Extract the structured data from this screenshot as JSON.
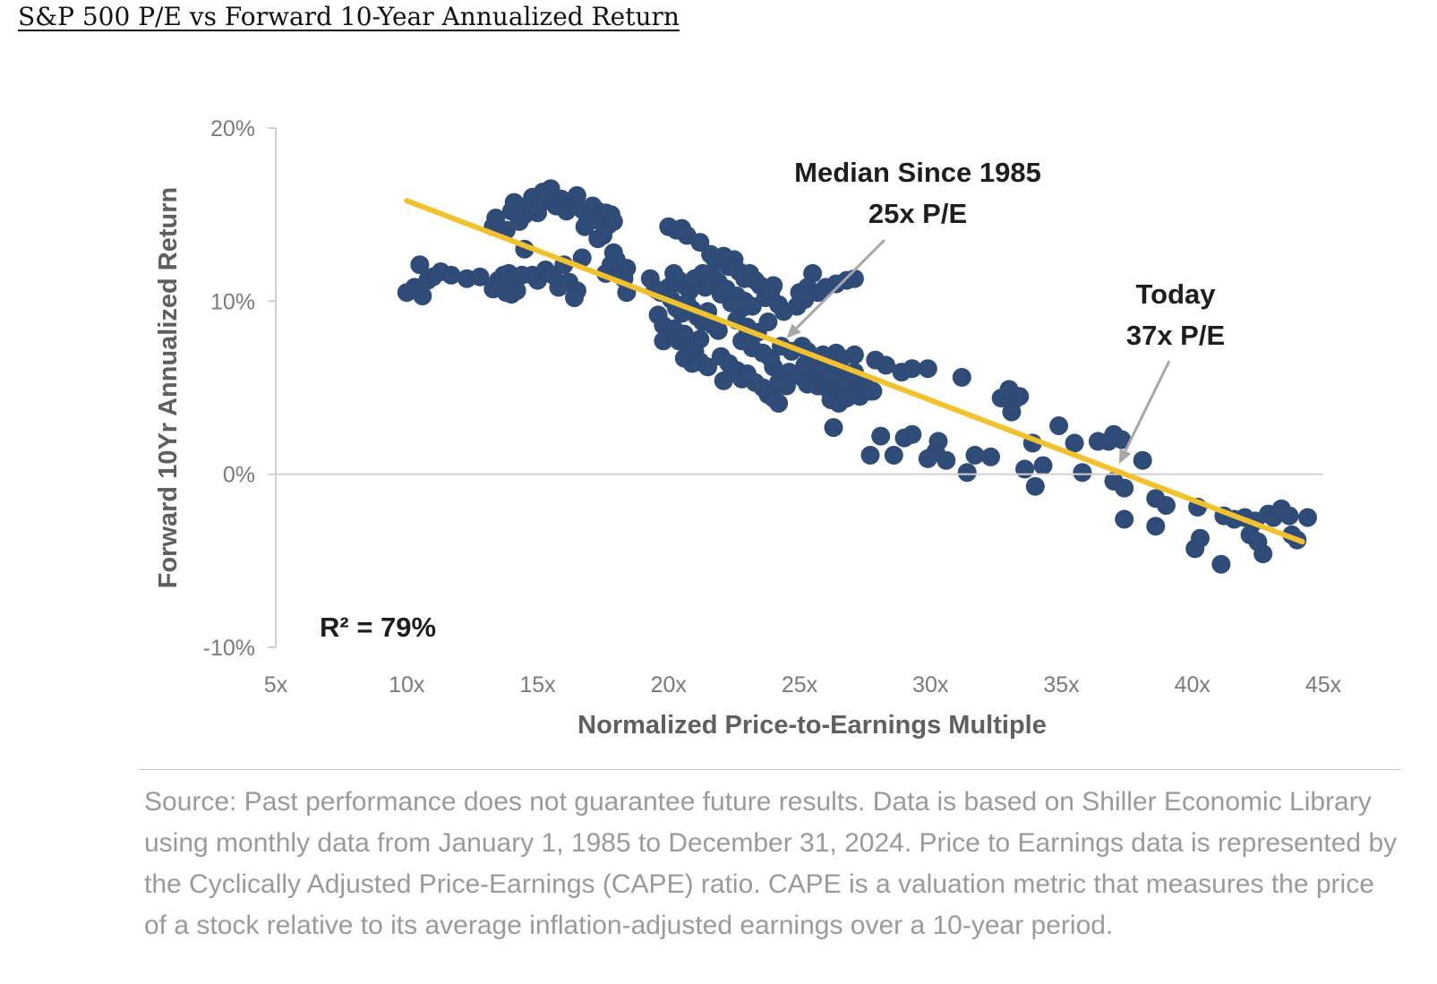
{
  "title": "S&P 500 P/E vs Forward 10-Year Annualized Return",
  "source_note": "Source: Past performance does not guarantee future results. Data is based on Shiller Economic Library using monthly data from January 1, 1985 to December 31, 2024. Price to Earnings data is represented by the Cyclically Adjusted Price-Earnings (CAPE) ratio. CAPE is a valuation metric that measures the price of a stock relative to its average inflation-adjusted earnings over a 10-year period.",
  "colors": {
    "points": "#2f4b78",
    "trendline": "#f2c12e",
    "arrows": "#a6a6a6",
    "axis": "#d0d0d0"
  },
  "chart_data": {
    "type": "scatter",
    "xlabel": "Normalized Price-to-Earnings Multiple",
    "ylabel": "Forward 10Yr Annualized Return",
    "xlim": [
      5,
      45
    ],
    "ylim": [
      -10,
      20
    ],
    "x_ticks": [
      5,
      10,
      15,
      20,
      25,
      30,
      35,
      40,
      45
    ],
    "x_tick_labels": [
      "5x",
      "10x",
      "15x",
      "20x",
      "25x",
      "30x",
      "35x",
      "40x",
      "45x"
    ],
    "y_ticks": [
      -10,
      0,
      10,
      20
    ],
    "y_tick_labels": [
      "-10%",
      "0%",
      "10%",
      "20%"
    ],
    "grid": false,
    "trendline": {
      "x": [
        10,
        44.2
      ],
      "y": [
        15.8,
        -3.9
      ]
    },
    "annotations": [
      {
        "lines": [
          "Median Since 1985",
          "25x P/E"
        ],
        "x": 25,
        "y": 7.7
      },
      {
        "lines": [
          "Today",
          "37x P/E"
        ],
        "x": 37,
        "y": 0.6
      },
      {
        "lines": [
          "R² = 79%"
        ],
        "x": 12.5,
        "y": -9
      }
    ],
    "points": [
      [
        10,
        10.5
      ],
      [
        10.3,
        10.8
      ],
      [
        10.5,
        12.1
      ],
      [
        10.6,
        10.3
      ],
      [
        10.8,
        11.2
      ],
      [
        11,
        11.4
      ],
      [
        11.3,
        11.7
      ],
      [
        11.7,
        11.5
      ],
      [
        12.3,
        11.3
      ],
      [
        12.8,
        11.4
      ],
      [
        13.3,
        10.7
      ],
      [
        13.5,
        11.2
      ],
      [
        13.7,
        11.5
      ],
      [
        13.9,
        11.6
      ],
      [
        13.6,
        10.9
      ],
      [
        13.8,
        10.5
      ],
      [
        14,
        10.4
      ],
      [
        14.2,
        10.6
      ],
      [
        14.4,
        11.5
      ],
      [
        13.8,
        11.2
      ],
      [
        13.3,
        14.3
      ],
      [
        13.4,
        14.8
      ],
      [
        13.8,
        14.1
      ],
      [
        14,
        15.2
      ],
      [
        14.1,
        15.7
      ],
      [
        14.3,
        14.6
      ],
      [
        14.5,
        15
      ],
      [
        14.6,
        15.5
      ],
      [
        14.8,
        16
      ],
      [
        15,
        15.1
      ],
      [
        15.2,
        16.3
      ],
      [
        15.3,
        15.8
      ],
      [
        15.5,
        16.5
      ],
      [
        15.7,
        15.5
      ],
      [
        15.9,
        15.9
      ],
      [
        16.1,
        15.2
      ],
      [
        16.3,
        15.6
      ],
      [
        16.5,
        16.1
      ],
      [
        16.7,
        15.3
      ],
      [
        16.9,
        14.9
      ],
      [
        17.1,
        15.5
      ],
      [
        17.3,
        15.2
      ],
      [
        17.5,
        14.8
      ],
      [
        17.7,
        14.4
      ],
      [
        17.8,
        15
      ],
      [
        17.9,
        14.6
      ],
      [
        17.6,
        15.1
      ],
      [
        17.2,
        14.7
      ],
      [
        16.8,
        14.3
      ],
      [
        17.5,
        13.8
      ],
      [
        17.3,
        13.6
      ],
      [
        17.9,
        12.8
      ],
      [
        18,
        12.4
      ],
      [
        18.2,
        11.8
      ],
      [
        18.3,
        11.3
      ],
      [
        18.4,
        11.9
      ],
      [
        17.8,
        12.1
      ],
      [
        17.6,
        11.6
      ],
      [
        16.7,
        12.5
      ],
      [
        16,
        12.1
      ],
      [
        15.3,
        11.8
      ],
      [
        15,
        11.2
      ],
      [
        14.8,
        11.5
      ],
      [
        15.6,
        11.5
      ],
      [
        16.2,
        11.1
      ],
      [
        16.5,
        10.6
      ],
      [
        16.4,
        10.2
      ],
      [
        15.8,
        10.8
      ],
      [
        14.5,
        13
      ],
      [
        18.4,
        10.5
      ],
      [
        20,
        14.3
      ],
      [
        20.3,
        14.1
      ],
      [
        20.5,
        14.2
      ],
      [
        20.7,
        13.8
      ],
      [
        21.2,
        13.4
      ],
      [
        21.6,
        12.7
      ],
      [
        21.8,
        12.3
      ],
      [
        22.1,
        12.6
      ],
      [
        22.3,
        12
      ],
      [
        22.5,
        12.4
      ],
      [
        22.7,
        11.7
      ],
      [
        22.9,
        11.3
      ],
      [
        23.1,
        11.6
      ],
      [
        23.3,
        11.2
      ],
      [
        23.5,
        10.9
      ],
      [
        23.7,
        10.2
      ],
      [
        23.9,
        10.5
      ],
      [
        24,
        10.9
      ],
      [
        24.2,
        9.8
      ],
      [
        24.4,
        9.4
      ],
      [
        21.9,
        11.1
      ],
      [
        22.2,
        10.7
      ],
      [
        22.6,
        10.3
      ],
      [
        22.9,
        10
      ],
      [
        23.2,
        9.7
      ],
      [
        21.4,
        10.8
      ],
      [
        21.7,
        11.4
      ],
      [
        22,
        10.4
      ],
      [
        22.4,
        9.9
      ],
      [
        22.8,
        9.6
      ],
      [
        19.3,
        11.3
      ],
      [
        19.5,
        10.7
      ],
      [
        19.7,
        10.5
      ],
      [
        20,
        10.8
      ],
      [
        20.2,
        11.6
      ],
      [
        20.4,
        11.2
      ],
      [
        20.6,
        10.9
      ],
      [
        20.8,
        10.6
      ],
      [
        21,
        11.3
      ],
      [
        21.3,
        11.6
      ],
      [
        20.1,
        10.1
      ],
      [
        20.3,
        9.6
      ],
      [
        20.5,
        9.3
      ],
      [
        20.7,
        9.9
      ],
      [
        20.9,
        9.5
      ],
      [
        21.1,
        9.1
      ],
      [
        21.3,
        8.8
      ],
      [
        21.5,
        9.4
      ],
      [
        21.7,
        8.6
      ],
      [
        21.9,
        8.3
      ],
      [
        19.6,
        9.2
      ],
      [
        19.8,
        8.6
      ],
      [
        20,
        7.9
      ],
      [
        19.8,
        7.7
      ],
      [
        20.2,
        8.4
      ],
      [
        20.4,
        7.7
      ],
      [
        20.6,
        8.1
      ],
      [
        20.8,
        7.4
      ],
      [
        21,
        7.1
      ],
      [
        21.2,
        7.8
      ],
      [
        20.6,
        6.7
      ],
      [
        20.9,
        6.4
      ],
      [
        21.2,
        6.5
      ],
      [
        21.5,
        6.2
      ],
      [
        22,
        6.8
      ],
      [
        22.3,
        6.4
      ],
      [
        22.6,
        6
      ],
      [
        22.8,
        5.5
      ],
      [
        23,
        5.8
      ],
      [
        23.3,
        5.3
      ],
      [
        23.6,
        5
      ],
      [
        23.8,
        4.6
      ],
      [
        24,
        4.4
      ],
      [
        24.2,
        4.1
      ],
      [
        24,
        6.2
      ],
      [
        24.3,
        5.6
      ],
      [
        24.6,
        5.9
      ],
      [
        24.5,
        5.1
      ],
      [
        24.2,
        5.3
      ],
      [
        22.1,
        5.4
      ],
      [
        22.8,
        7.7
      ],
      [
        23.2,
        7.3
      ],
      [
        23.6,
        7
      ],
      [
        23.9,
        6.7
      ],
      [
        24.3,
        7.4
      ],
      [
        24.7,
        7.1
      ],
      [
        22.6,
        8.9
      ],
      [
        23,
        8.5
      ],
      [
        23.4,
        8.2
      ],
      [
        23.8,
        8.8
      ],
      [
        25,
        10.5
      ],
      [
        25.3,
        10.8
      ],
      [
        25.5,
        11.6
      ],
      [
        25.7,
        10.5
      ],
      [
        26,
        10.8
      ],
      [
        26.4,
        11
      ],
      [
        26.8,
        11.2
      ],
      [
        27.1,
        11.3
      ],
      [
        24.9,
        9.7
      ],
      [
        25.2,
        10.1
      ],
      [
        25.1,
        7.4
      ],
      [
        25.3,
        7.1
      ],
      [
        25.5,
        6.8
      ],
      [
        25.7,
        6.5
      ],
      [
        25.9,
        6.9
      ],
      [
        26.1,
        6.2
      ],
      [
        26.3,
        5.9
      ],
      [
        26.5,
        6.4
      ],
      [
        26.7,
        5.8
      ],
      [
        26.9,
        5.5
      ],
      [
        27.1,
        5.9
      ],
      [
        27.3,
        5.4
      ],
      [
        27.5,
        5.1
      ],
      [
        27.7,
        4.8
      ],
      [
        25.1,
        5.6
      ],
      [
        25.3,
        5.2
      ],
      [
        25.5,
        5.6
      ],
      [
        25.7,
        5.1
      ],
      [
        25.9,
        5.5
      ],
      [
        26.1,
        4.9
      ],
      [
        26.3,
        5.3
      ],
      [
        26.5,
        4.7
      ],
      [
        26.7,
        5.1
      ],
      [
        26.9,
        4.6
      ],
      [
        27.1,
        4.9
      ],
      [
        27.3,
        4.5
      ],
      [
        27.5,
        4.9
      ],
      [
        26.2,
        4.3
      ],
      [
        26.5,
        4.1
      ],
      [
        26.8,
        4.4
      ],
      [
        25.2,
        6.3
      ],
      [
        25.4,
        6
      ],
      [
        25.6,
        6.4
      ],
      [
        25.8,
        5.8
      ],
      [
        26,
        6.1
      ],
      [
        26.2,
        5.7
      ],
      [
        26.4,
        7
      ],
      [
        26.6,
        6.7
      ],
      [
        26.3,
        2.7
      ],
      [
        27.1,
        6.9
      ],
      [
        27.9,
        6.6
      ],
      [
        27.8,
        4.8
      ],
      [
        28.3,
        6.3
      ],
      [
        28.9,
        5.9
      ],
      [
        29.3,
        6.1
      ],
      [
        29.9,
        6.1
      ],
      [
        31.2,
        5.6
      ],
      [
        27.7,
        1.1
      ],
      [
        28.1,
        2.2
      ],
      [
        28.6,
        1.1
      ],
      [
        29,
        2.1
      ],
      [
        29.3,
        2.3
      ],
      [
        29.9,
        0.9
      ],
      [
        30.2,
        1.3
      ],
      [
        30.3,
        1.9
      ],
      [
        30.6,
        0.8
      ],
      [
        31.4,
        0.1
      ],
      [
        31.7,
        1.1
      ],
      [
        32.3,
        1
      ],
      [
        32.7,
        4.4
      ],
      [
        33,
        4.9
      ],
      [
        33.2,
        4.3
      ],
      [
        33.4,
        4.5
      ],
      [
        33.1,
        3.6
      ],
      [
        33.6,
        0.3
      ],
      [
        33.9,
        1.8
      ],
      [
        34,
        -0.7
      ],
      [
        34.3,
        0.5
      ],
      [
        34.9,
        2.8
      ],
      [
        35.5,
        1.8
      ],
      [
        35.8,
        0.1
      ],
      [
        36.4,
        1.9
      ],
      [
        36.8,
        1.9
      ],
      [
        37,
        2.3
      ],
      [
        37.3,
        2
      ],
      [
        37,
        -0.4
      ],
      [
        37.4,
        -0.8
      ],
      [
        37.4,
        -2.6
      ],
      [
        38.1,
        0.8
      ],
      [
        38.6,
        -1.4
      ],
      [
        38.6,
        -3
      ],
      [
        39,
        -1.8
      ],
      [
        40.2,
        -1.9
      ],
      [
        40.3,
        -3.7
      ],
      [
        40.1,
        -4.3
      ],
      [
        41.1,
        -5.2
      ],
      [
        41.2,
        -2.4
      ],
      [
        41.6,
        -2.6
      ],
      [
        42,
        -2.5
      ],
      [
        42.2,
        -3.5
      ],
      [
        42.4,
        -2.7
      ],
      [
        42.5,
        -3.9
      ],
      [
        42.7,
        -4.6
      ],
      [
        42.9,
        -2.3
      ],
      [
        43.1,
        -2.5
      ],
      [
        43.4,
        -2
      ],
      [
        43.7,
        -2.4
      ],
      [
        44,
        -3.8
      ],
      [
        44.4,
        -2.5
      ],
      [
        43.8,
        -3.5
      ]
    ]
  }
}
